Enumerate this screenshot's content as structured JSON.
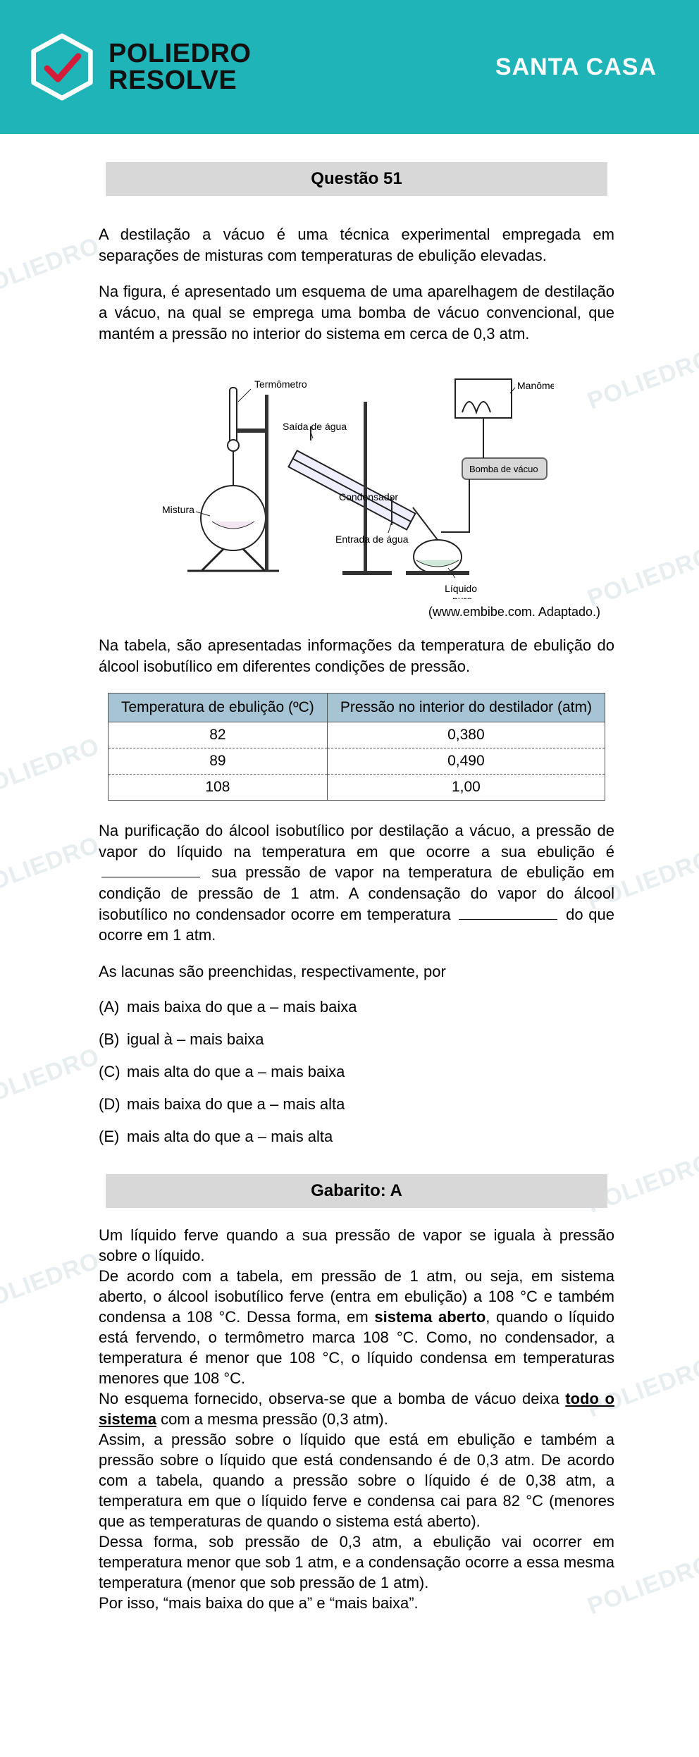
{
  "header": {
    "brand_line1": "POLIEDRO",
    "brand_line2": "RESOLVE",
    "right": "SANTA CASA",
    "accent": "#1fb4b8",
    "check_color": "#d41c3a"
  },
  "watermark_text": "POLIEDRO",
  "question": {
    "title": "Questão 51",
    "p1": "A destilação a vácuo é uma técnica experimental empregada em separações de misturas com temperaturas de ebulição elevadas.",
    "p2": "Na figura, é apresentado um esquema de uma aparelhagem de destilação a vácuo, na qual se emprega uma bomba de vácuo convencional, que mantém a pressão no interior do sistema em cerca de 0,3 atm.",
    "diagram_labels": {
      "termometro": "Termômetro",
      "saida_agua": "Saída de água",
      "mistura": "Mistura",
      "condensador": "Condensador",
      "entrada_agua": "Entrada de água",
      "manometro": "Manômetro",
      "bomba": "Bomba de vácuo",
      "liquido_puro": "Líquido puro"
    },
    "caption": "(www.embibe.com. Adaptado.)",
    "p3": "Na tabela, são apresentadas informações da temperatura de ebulição do álcool isobutílico em diferentes condições de pressão.",
    "table": {
      "headers": [
        "Temperatura de ebulição (ºC)",
        "Pressão no interior do destilador (atm)"
      ],
      "rows": [
        [
          "82",
          "0,380"
        ],
        [
          "89",
          "0,490"
        ],
        [
          "108",
          "1,00"
        ]
      ],
      "header_bg": "#a7c4d4"
    },
    "p4_pre": "Na purificação do álcool isobutílico por destilação a vácuo, a pressão de vapor do líquido na temperatura em que ocorre a sua ebulição é ",
    "p4_mid": " sua pressão de vapor na temperatura de ebulição em condição de pressão de 1 atm. A condensação do vapor do álcool isobutílico no condensador ocorre em temperatura ",
    "p4_post": " do que ocorre em 1 atm.",
    "lead": "As lacunas são preenchidas, respectivamente, por",
    "options": [
      {
        "label": "(A)",
        "text": "mais baixa do que a – mais baixa"
      },
      {
        "label": "(B)",
        "text": "igual à – mais baixa"
      },
      {
        "label": "(C)",
        "text": "mais alta do que a – mais baixa"
      },
      {
        "label": "(D)",
        "text": "mais baixa do que a – mais alta"
      },
      {
        "label": "(E)",
        "text": "mais alta do que a – mais alta"
      }
    ]
  },
  "answer": {
    "title": "Gabarito: A",
    "html": "Um líquido ferve quando a sua pressão de vapor se iguala à pressão sobre o líquido.<br>De acordo com a tabela, em pressão de 1 atm, ou seja, em sistema aberto, o álcool isobutílico ferve (entra em ebulição) a 108 °C e também condensa a 108 °C. Dessa forma, em <b>sistema aberto</b>, quando o líquido está fervendo, o termômetro marca 108 °C. Como, no condensador, a temperatura é menor que 108 °C, o líquido condensa em temperaturas menores que 108 °C.<br>No esquema fornecido, observa-se que a bomba de vácuo deixa <b><u>todo o sistema</u></b> com a mesma pressão (0,3 atm).<br>Assim, a pressão sobre o líquido que está em ebulição e também a pressão sobre o líquido que está condensando é de 0,3 atm. De acordo com a tabela, quando a pressão sobre o líquido é de 0,38 atm, a temperatura em que o líquido ferve e condensa cai para 82 °C (menores que as temperaturas de quando o sistema está aberto).<br>Dessa forma, sob pressão de 0,3 atm, a ebulição vai ocorrer em temperatura menor que sob 1 atm, e a condensação ocorre a essa mesma temperatura (menor que sob pressão de 1 atm).<br>Por isso, “mais baixa do que a” e “mais baixa”."
  }
}
